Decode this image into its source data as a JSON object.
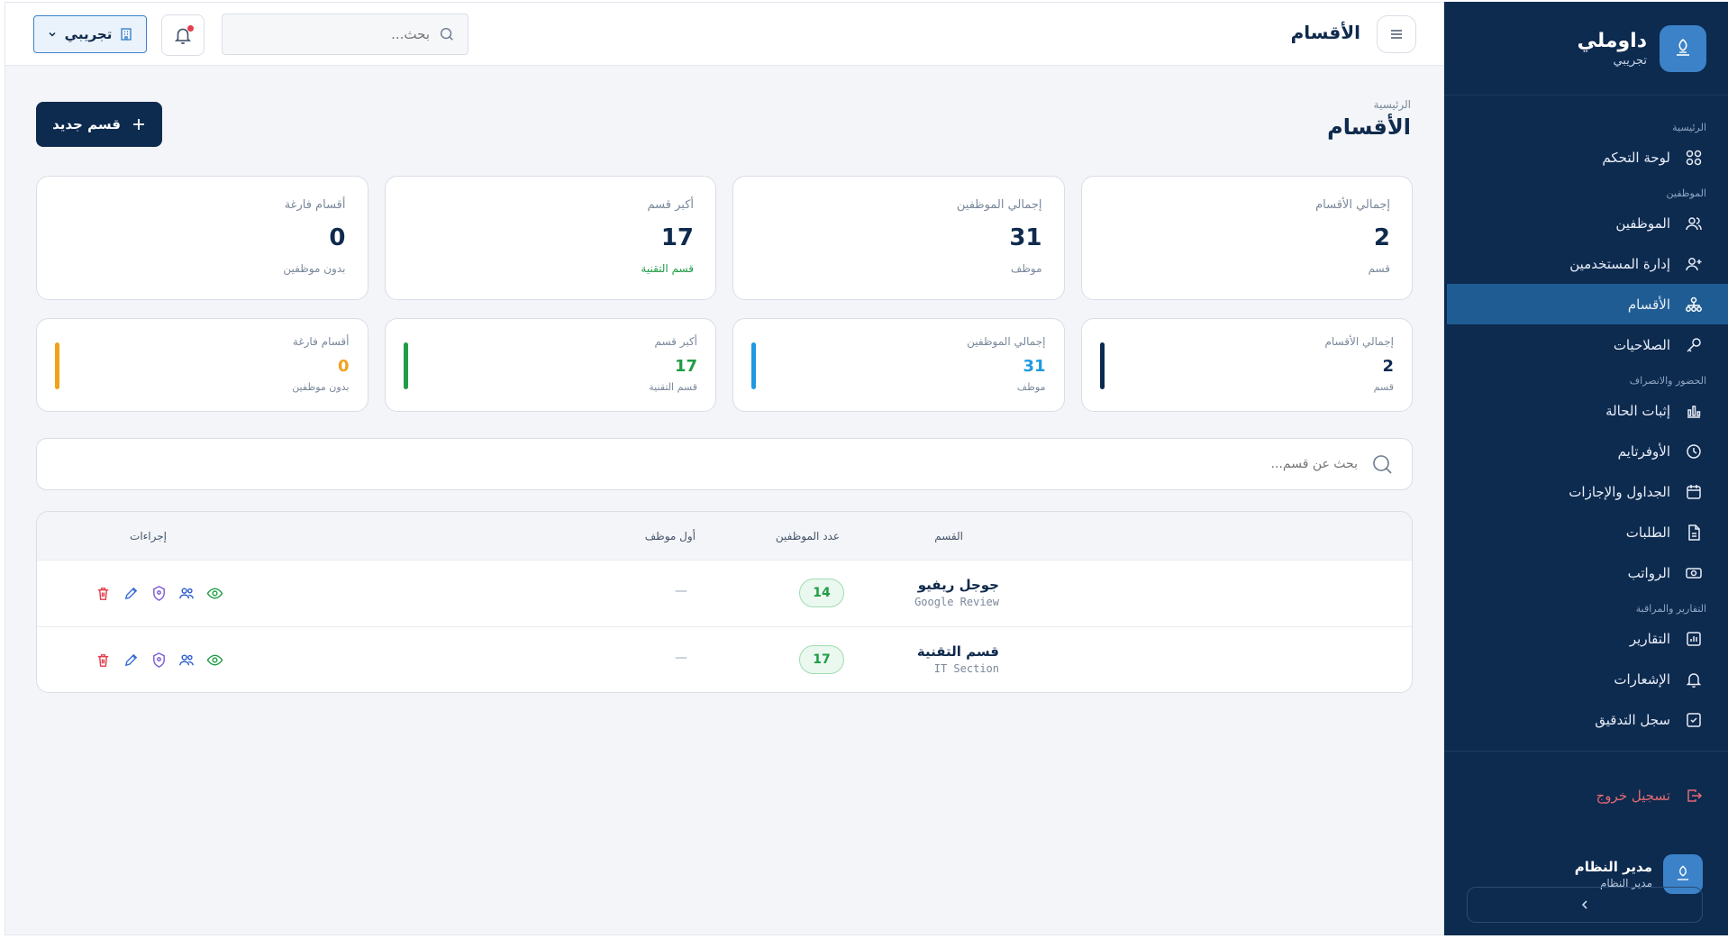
{
  "sidebar": {
    "brand_name": "داوملي",
    "brand_sub": "تجريبي",
    "sections": {
      "home": "الرئيسية",
      "employees": "الموظفين",
      "attendance": "الحضور والانصراف",
      "reports": "التقارير والمراقبة"
    },
    "items": {
      "dashboard": "لوحة التحكم",
      "employees": "الموظفين",
      "users": "إدارة المستخدمين",
      "departments": "الأقسام",
      "permissions": "الصلاحيات",
      "status": "إثبات الحالة",
      "overtime": "الأوفرتايم",
      "schedules": "الجداول والإجازات",
      "requests": "الطلبات",
      "payroll": "الرواتب",
      "reports": "التقارير",
      "notifications": "الإشعارات",
      "audit": "سجل التدقيق"
    },
    "logout": "تسجيل خروج",
    "user_name": "مدير النظام",
    "user_role": "مدير النظام"
  },
  "topbar": {
    "title": "الأقسام",
    "search_placeholder": "بحث...",
    "demo_label": "تجريبي"
  },
  "page": {
    "breadcrumb": "الرئيسية",
    "title": "الأقسام",
    "new_button": "قسم جديد"
  },
  "stats": [
    {
      "label": "إجمالي الأقسام",
      "value": "2",
      "sub": "قسم"
    },
    {
      "label": "إجمالي الموظفين",
      "value": "31",
      "sub": "موظف"
    },
    {
      "label": "أكبر قسم",
      "value": "17",
      "sub": "قسم التقنية"
    },
    {
      "label": "أقسام فارغة",
      "value": "0",
      "sub": "بدون موظفين"
    }
  ],
  "stats2": [
    {
      "label": "إجمالي الأقسام",
      "value": "2",
      "sub": "قسم",
      "color": "#0d2a4f"
    },
    {
      "label": "إجمالي الموظفين",
      "value": "31",
      "sub": "موظف",
      "color": "#1e9be0"
    },
    {
      "label": "أكبر قسم",
      "value": "17",
      "sub": "قسم التقنية",
      "color": "#1f9d45"
    },
    {
      "label": "أقسام فارغة",
      "value": "0",
      "sub": "بدون موظفين",
      "color": "#f0a21c"
    }
  ],
  "dept_search_placeholder": "بحث عن قسم...",
  "table": {
    "headers": {
      "dept": "القسم",
      "count": "عدد الموظفين",
      "first": "أول موظف",
      "actions": "إجراءات"
    },
    "rows": [
      {
        "name": "جوجل ريفيو",
        "name_en": "Google Review",
        "count": "14",
        "first": "—"
      },
      {
        "name": "قسم التقنية",
        "name_en": "IT Section",
        "count": "17",
        "first": "—"
      }
    ]
  },
  "colors": {
    "sidebar_bg": "#0d2a4f",
    "active_item": "#1f5c93",
    "accent": "#3b82c9",
    "danger": "#e23d4b"
  }
}
